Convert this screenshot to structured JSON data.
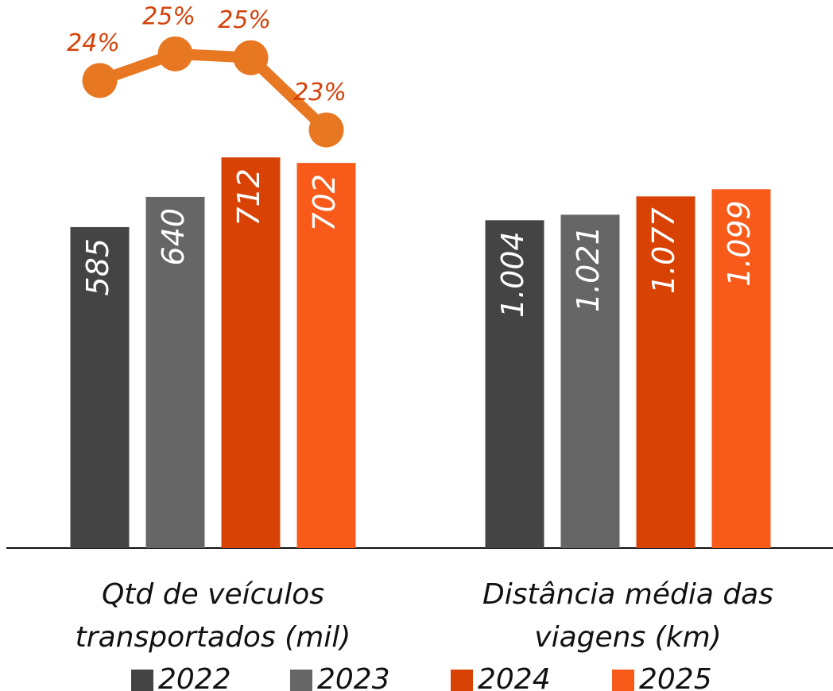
{
  "chart_data": [
    {
      "type": "bar",
      "xlabel": "Qtd de veículos\ntransportados (mil)",
      "series": [
        {
          "name": "2022",
          "color": "#444444",
          "values": [
            585
          ]
        },
        {
          "name": "2023",
          "color": "#666666",
          "values": [
            640
          ]
        },
        {
          "name": "2024",
          "color": "#d84305",
          "values": [
            712
          ]
        },
        {
          "name": "2025",
          "color": "#f85a1a",
          "values": [
            702
          ]
        }
      ],
      "ylim": [
        0,
        970
      ],
      "line": {
        "type": "line",
        "color": "#e87722",
        "label_color": "#d4420a",
        "axis": "y2",
        "values": [
          24.3,
          25,
          24.9,
          23
        ],
        "value_labels": [
          "24%",
          "25%",
          "25%",
          "23%"
        ]
      },
      "y2lim": [
        12,
        26
      ],
      "legend": "bottom"
    },
    {
      "type": "bar",
      "xlabel": "Distância média das\nviagens (km)",
      "series": [
        {
          "color": "#444444",
          "values": [
            1004
          ],
          "value_labels": [
            "1.004"
          ]
        },
        {
          "color": "#666666",
          "values": [
            1021
          ],
          "value_labels": [
            "1.021"
          ]
        },
        {
          "color": "#d84305",
          "values": [
            1077
          ],
          "value_labels": [
            "1.077"
          ]
        },
        {
          "color": "#f85a1a",
          "values": [
            1099
          ],
          "value_labels": [
            "1.099"
          ]
        }
      ],
      "ylim": [
        0,
        1630
      ]
    }
  ]
}
